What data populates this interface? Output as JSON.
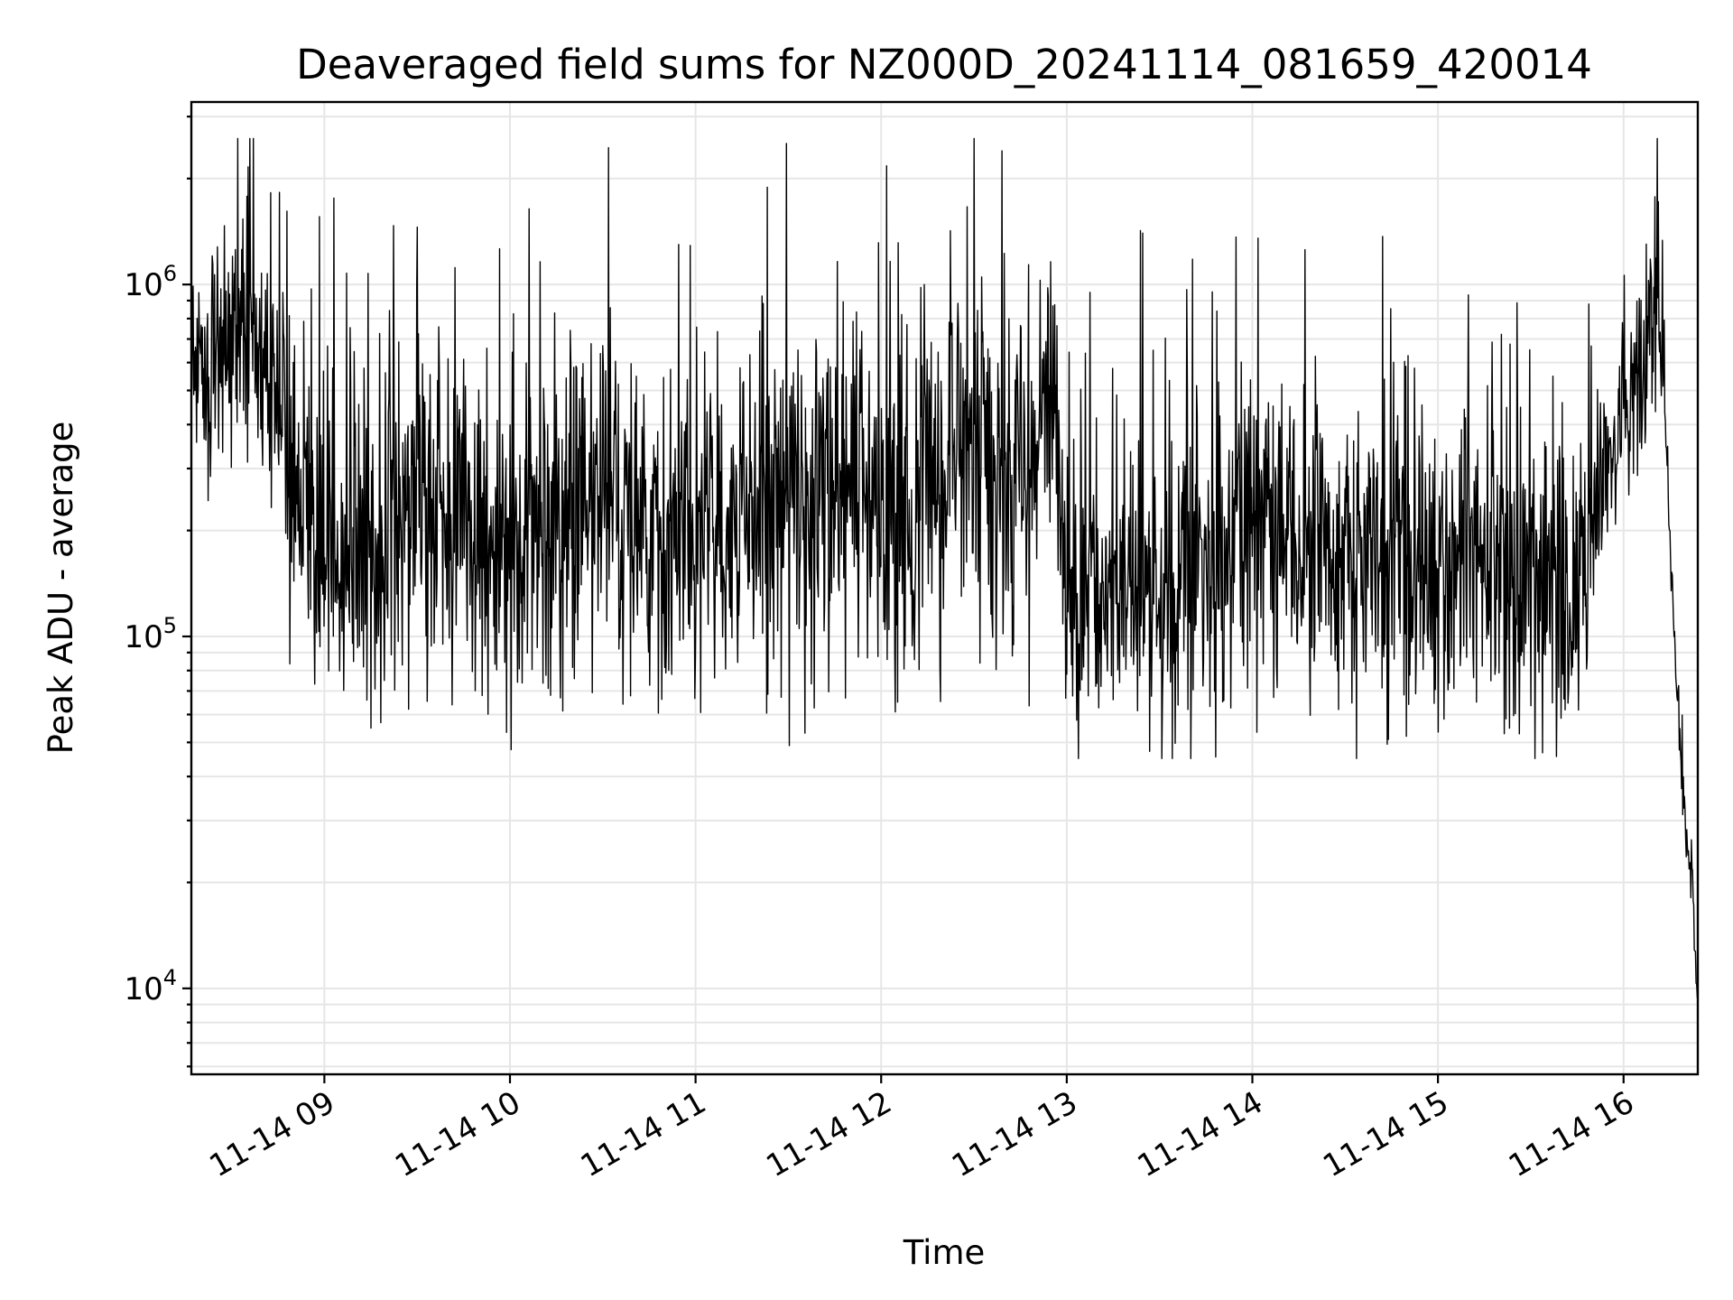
{
  "chart_data": {
    "type": "line",
    "title": "Deaveraged field sums for NZ000D_20241114_081659_420014",
    "xlabel": "Time",
    "ylabel": "Peak ADU - average",
    "y_scale": "log",
    "ylim": [
      5700,
      3300000
    ],
    "xlim": [
      "2024-11-14 08:17",
      "2024-11-14 16:24"
    ],
    "grid": true,
    "legend": "none",
    "line_color": "#000000",
    "x_ticks": [
      {
        "t": "2024-11-14 09:00",
        "label": "11-14 09"
      },
      {
        "t": "2024-11-14 10:00",
        "label": "11-14 10"
      },
      {
        "t": "2024-11-14 11:00",
        "label": "11-14 11"
      },
      {
        "t": "2024-11-14 12:00",
        "label": "11-14 12"
      },
      {
        "t": "2024-11-14 13:00",
        "label": "11-14 13"
      },
      {
        "t": "2024-11-14 14:00",
        "label": "11-14 14"
      },
      {
        "t": "2024-11-14 15:00",
        "label": "11-14 15"
      },
      {
        "t": "2024-11-14 16:00",
        "label": "11-14 16"
      }
    ],
    "y_ticks": [
      {
        "value": 10000,
        "base": "10",
        "exp": "4"
      },
      {
        "value": 100000,
        "base": "10",
        "exp": "5"
      },
      {
        "value": 1000000,
        "base": "10",
        "exp": "6"
      }
    ],
    "series": [
      {
        "x": [
          "2024-11-14 08:17",
          "2024-11-14 08:25",
          "2024-11-14 08:35",
          "2024-11-14 08:45",
          "2024-11-14 08:55",
          "2024-11-14 09:00",
          "2024-11-14 09:15",
          "2024-11-14 09:30",
          "2024-11-14 09:45",
          "2024-11-14 10:00",
          "2024-11-14 10:15",
          "2024-11-14 10:30",
          "2024-11-14 10:45",
          "2024-11-14 11:00",
          "2024-11-14 11:15",
          "2024-11-14 11:30",
          "2024-11-14 11:45",
          "2024-11-14 12:00",
          "2024-11-14 12:15",
          "2024-11-14 12:30",
          "2024-11-14 12:45",
          "2024-11-14 12:55",
          "2024-11-14 13:00",
          "2024-11-14 13:15",
          "2024-11-14 13:30",
          "2024-11-14 13:45",
          "2024-11-14 14:00",
          "2024-11-14 14:15",
          "2024-11-14 14:30",
          "2024-11-14 14:45",
          "2024-11-14 15:00",
          "2024-11-14 15:15",
          "2024-11-14 15:30",
          "2024-11-14 15:45",
          "2024-11-14 15:50",
          "2024-11-14 16:00",
          "2024-11-14 16:07",
          "2024-11-14 16:10",
          "2024-11-14 16:13",
          "2024-11-14 16:16",
          "2024-11-14 16:19",
          "2024-11-14 16:22",
          "2024-11-14 16:24"
        ],
        "y": [
          650000,
          600000,
          900000,
          400000,
          220000,
          200000,
          180000,
          260000,
          200000,
          190000,
          230000,
          260000,
          220000,
          190000,
          210000,
          260000,
          250000,
          200000,
          330000,
          400000,
          260000,
          500000,
          150000,
          140000,
          140000,
          160000,
          200000,
          190000,
          170000,
          170000,
          160000,
          180000,
          160000,
          140000,
          190000,
          430000,
          600000,
          950000,
          550000,
          120000,
          35000,
          22000,
          9000
        ],
        "spread": [
          0.3,
          0.3,
          0.35,
          0.42,
          0.42,
          0.42,
          0.42,
          0.42,
          0.42,
          0.42,
          0.42,
          0.42,
          0.42,
          0.42,
          0.44,
          0.46,
          0.44,
          0.42,
          0.44,
          0.46,
          0.44,
          0.46,
          0.42,
          0.42,
          0.42,
          0.42,
          0.44,
          0.44,
          0.42,
          0.42,
          0.42,
          0.42,
          0.42,
          0.42,
          0.3,
          0.18,
          0.28,
          0.3,
          0.15,
          0.06,
          0.1,
          0.08,
          0.06
        ]
      }
    ]
  }
}
